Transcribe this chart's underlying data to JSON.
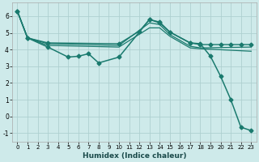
{
  "xlabel": "Humidex (Indice chaleur)",
  "bg_color": "#ceeaea",
  "grid_color": "#aed0d0",
  "line_color": "#1a7a6e",
  "xlim": [
    -0.5,
    23.5
  ],
  "ylim": [
    -1.5,
    6.8
  ],
  "yticks": [
    -1,
    0,
    1,
    2,
    3,
    4,
    5,
    6
  ],
  "xticks": [
    0,
    1,
    2,
    3,
    4,
    5,
    6,
    7,
    8,
    9,
    10,
    11,
    12,
    13,
    14,
    15,
    16,
    17,
    18,
    19,
    20,
    21,
    22,
    23
  ],
  "series": [
    {
      "x": [
        0,
        1,
        3,
        5,
        6,
        7,
        8,
        10,
        13,
        14,
        15,
        17,
        18,
        19,
        20,
        21,
        22,
        23
      ],
      "y": [
        6.3,
        4.7,
        4.15,
        3.55,
        3.6,
        3.75,
        3.2,
        3.55,
        5.8,
        5.6,
        5.05,
        4.4,
        4.35,
        3.6,
        2.4,
        1.0,
        -0.65,
        -0.85
      ],
      "marker": "D",
      "markersize": 2.5,
      "linewidth": 1.1
    },
    {
      "x": [
        0,
        1,
        3,
        10,
        12,
        13,
        14,
        15,
        17,
        18,
        19,
        20,
        21,
        22,
        23
      ],
      "y": [
        6.3,
        4.7,
        4.4,
        4.35,
        5.1,
        5.8,
        5.65,
        5.05,
        4.4,
        4.3,
        4.3,
        4.3,
        4.3,
        4.3,
        4.3
      ],
      "marker": "D",
      "markersize": 2.5,
      "linewidth": 1.0
    },
    {
      "x": [
        0,
        1,
        3,
        10,
        13,
        14,
        15,
        17,
        18,
        23
      ],
      "y": [
        6.3,
        4.7,
        4.35,
        4.25,
        5.6,
        5.5,
        4.9,
        4.2,
        4.1,
        4.15
      ],
      "marker": null,
      "markersize": 0,
      "linewidth": 0.9
    },
    {
      "x": [
        0,
        1,
        3,
        10,
        13,
        14,
        15,
        17,
        18,
        23
      ],
      "y": [
        6.3,
        4.7,
        4.25,
        4.15,
        5.3,
        5.3,
        4.8,
        4.1,
        4.05,
        3.9
      ],
      "marker": null,
      "markersize": 0,
      "linewidth": 0.9
    }
  ]
}
